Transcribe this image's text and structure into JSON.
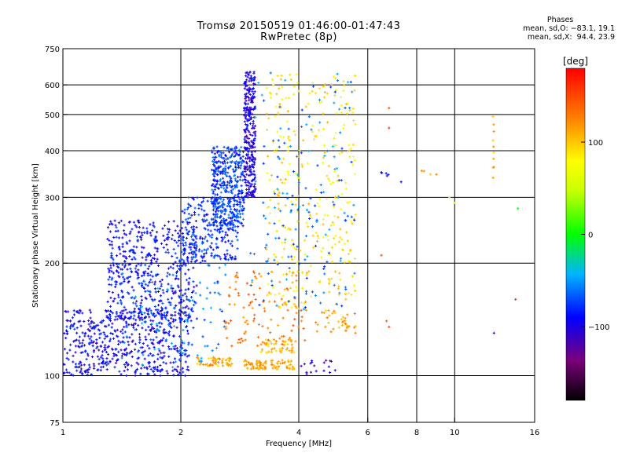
{
  "title_line1": "Tromsø 20150519 01:46:00-01:47:43",
  "title_line2": "RwPretec (8p)",
  "stats": {
    "heading": "Phases",
    "line1": "mean, sd,O: −83.1, 19.1",
    "line2": "mean, sd,X:  94.4, 23.9"
  },
  "chart_data": {
    "type": "scatter",
    "xlabel": "Frequency [MHz]",
    "ylabel": "Stationary phase Virtual Height [km]",
    "xscale": "log",
    "yscale": "log",
    "xlim": [
      1,
      16
    ],
    "ylim": [
      75,
      750
    ],
    "x_ticks": [
      1,
      2,
      4,
      6,
      8,
      10,
      16
    ],
    "x_tick_labels": [
      "1",
      "2",
      "4",
      "6",
      "8",
      "10",
      "16"
    ],
    "y_ticks": [
      75,
      100,
      200,
      300,
      400,
      500,
      600,
      750
    ],
    "y_tick_labels": [
      "75",
      "100",
      "200",
      "300",
      "400",
      "500",
      "600",
      "750"
    ],
    "grid": true,
    "colorbar": {
      "label": "[deg]",
      "range": [
        -180,
        180
      ],
      "ticks": [
        -100,
        0,
        100
      ],
      "tick_labels": [
        "−100",
        "0",
        "100"
      ],
      "colormap": "rainbow"
    },
    "clusters": [
      {
        "x": [
          1.0,
          2.1
        ],
        "y": [
          100,
          150
        ],
        "phase": -95,
        "n": 520
      },
      {
        "x": [
          1.3,
          2.2
        ],
        "y": [
          140,
          260
        ],
        "phase": -90,
        "n": 520
      },
      {
        "x": [
          2.0,
          2.8
        ],
        "y": [
          200,
          300
        ],
        "phase": -80,
        "n": 260
      },
      {
        "x": [
          2.4,
          2.9
        ],
        "y": [
          250,
          410
        ],
        "phase": -75,
        "n": 380
      },
      {
        "x": [
          2.9,
          3.1
        ],
        "y": [
          300,
          650
        ],
        "phase": -100,
        "n": 300
      },
      {
        "x": [
          2.2,
          2.7
        ],
        "y": [
          106,
          112
        ],
        "phase": 110,
        "n": 60
      },
      {
        "x": [
          2.9,
          3.3
        ],
        "y": [
          104,
          110
        ],
        "phase": 115,
        "n": 50
      },
      {
        "x": [
          3.4,
          3.9
        ],
        "y": [
          104,
          110
        ],
        "phase": 110,
        "n": 40
      },
      {
        "x": [
          3.2,
          3.9
        ],
        "y": [
          115,
          125
        ],
        "phase": 105,
        "n": 50
      },
      {
        "x": [
          2.6,
          4.2
        ],
        "y": [
          120,
          190
        ],
        "phase": 130,
        "n": 110
      },
      {
        "x": [
          3.3,
          5.6
        ],
        "y": [
          150,
          650
        ],
        "phase": 90,
        "n": 330
      },
      {
        "x": [
          3.0,
          5.6
        ],
        "y": [
          150,
          650
        ],
        "phase": -60,
        "n": 160
      },
      {
        "x": [
          1.4,
          2.6
        ],
        "y": [
          105,
          200
        ],
        "phase": -60,
        "n": 130
      },
      {
        "x": [
          4.4,
          5.6
        ],
        "y": [
          130,
          150
        ],
        "phase": 115,
        "n": 40
      },
      {
        "x": [
          4.0,
          5.0
        ],
        "y": [
          100,
          110
        ],
        "phase": -110,
        "n": 18
      },
      {
        "x": [
          6.5,
          6.8
        ],
        "y": [
          340,
          350
        ],
        "phase": -100,
        "n": 4
      },
      {
        "x": [
          8.2,
          9.0
        ],
        "y": [
          340,
          355
        ],
        "phase": 110,
        "n": 4
      },
      {
        "x": [
          12.5,
          12.6
        ],
        "y": [
          330,
          520
        ],
        "phase": 110,
        "n": 10
      }
    ],
    "points": [
      {
        "x": 6.8,
        "y": 520,
        "phase": 150
      },
      {
        "x": 6.8,
        "y": 460,
        "phase": 160
      },
      {
        "x": 6.5,
        "y": 210,
        "phase": 150
      },
      {
        "x": 6.7,
        "y": 140,
        "phase": 150
      },
      {
        "x": 6.8,
        "y": 135,
        "phase": 150
      },
      {
        "x": 6.5,
        "y": 350,
        "phase": -100
      },
      {
        "x": 7.3,
        "y": 330,
        "phase": -90
      },
      {
        "x": 12.6,
        "y": 130,
        "phase": -110
      },
      {
        "x": 14.3,
        "y": 160,
        "phase": 160
      },
      {
        "x": 14.5,
        "y": 280,
        "phase": 0
      },
      {
        "x": 9.7,
        "y": 300,
        "phase": 50
      },
      {
        "x": 10.0,
        "y": 290,
        "phase": 60
      }
    ]
  }
}
